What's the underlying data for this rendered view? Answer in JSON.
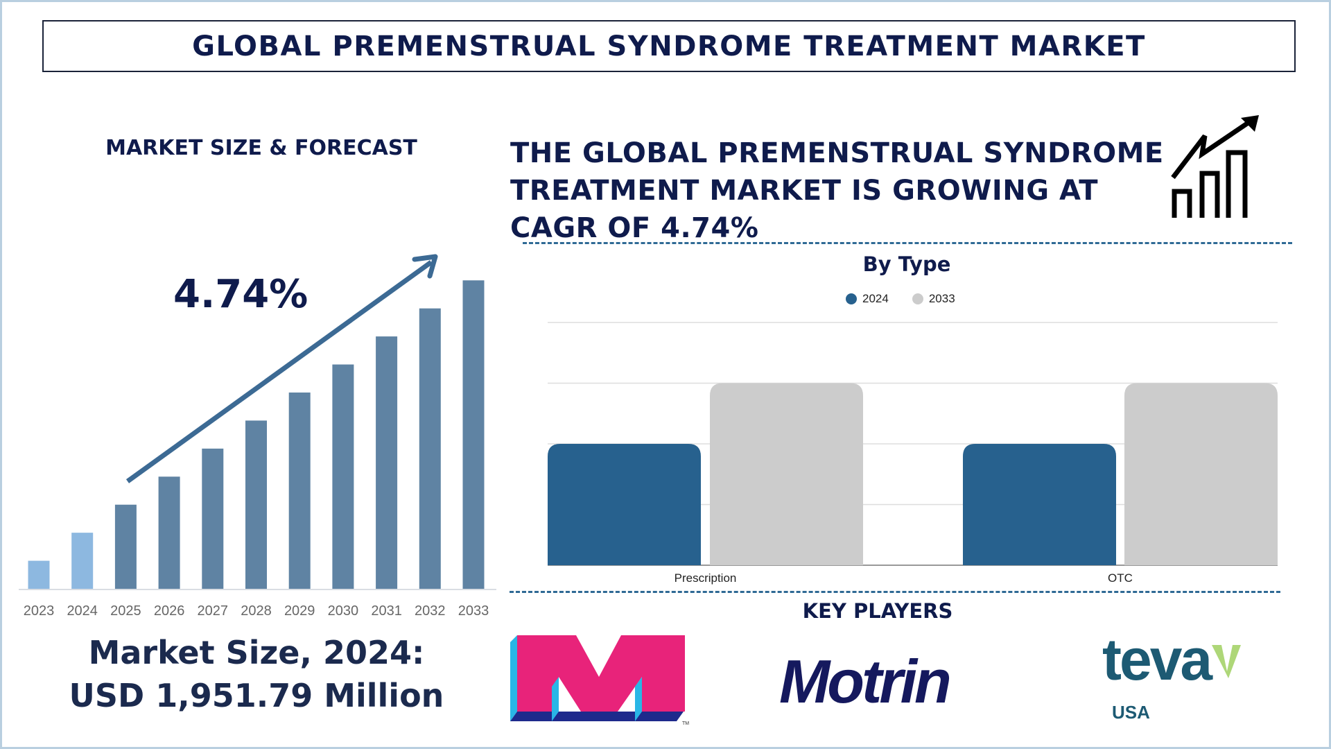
{
  "header": {
    "title": "GLOBAL PREMENSTRUAL SYNDROME TREATMENT MARKET"
  },
  "left": {
    "section_title": "MARKET SIZE & FORECAST",
    "cagr_label": "4.74%",
    "market_size_line1": "Market Size, 2024:",
    "market_size_line2": "USD 1,951.79 Million"
  },
  "right": {
    "headline_lines": [
      "THE GLOBAL PREMENSTRUAL SYNDROME",
      "TREATMENT MARKET IS GROWING AT",
      "CAGR OF 4.74%"
    ],
    "growth_icon": "bar-chart-growth-arrow-icon",
    "key_players_title": "KEY PLAYERS",
    "key_players": [
      {
        "name": "M",
        "logo_colors": [
          "#e8237a",
          "#29b6e6",
          "#1e2a8c"
        ]
      },
      {
        "name": "Motrin",
        "logo_colors": [
          "#15195e"
        ]
      },
      {
        "name": "teva",
        "sub": "USA",
        "logo_colors": [
          "#1d5a73",
          "#8cc63f"
        ]
      }
    ]
  },
  "chart_data": [
    {
      "type": "bar",
      "title": "",
      "categories": [
        "2023",
        "2024",
        "2025",
        "2026",
        "2027",
        "2028",
        "2029",
        "2030",
        "2031",
        "2032",
        "2033"
      ],
      "values": [
        1,
        2,
        3,
        4,
        5,
        6,
        7,
        8,
        9,
        10,
        11
      ],
      "colors": {
        "historical": "#8db8e0",
        "forecast": "#5f83a3",
        "arrow": "#3c6a94"
      },
      "historical_years": [
        "2023",
        "2024"
      ],
      "annotation": "4.74%",
      "ylim": [
        0,
        11
      ],
      "grid": false
    },
    {
      "type": "bar",
      "title": "By Type",
      "categories": [
        "Prescription",
        "OTC"
      ],
      "series": [
        {
          "name": "2024",
          "values": [
            2,
            2
          ],
          "color": "#27618e"
        },
        {
          "name": "2033",
          "values": [
            3,
            3
          ],
          "color": "#cccccc"
        }
      ],
      "ylim": [
        0,
        4
      ],
      "grid": true,
      "legend": "top"
    }
  ]
}
